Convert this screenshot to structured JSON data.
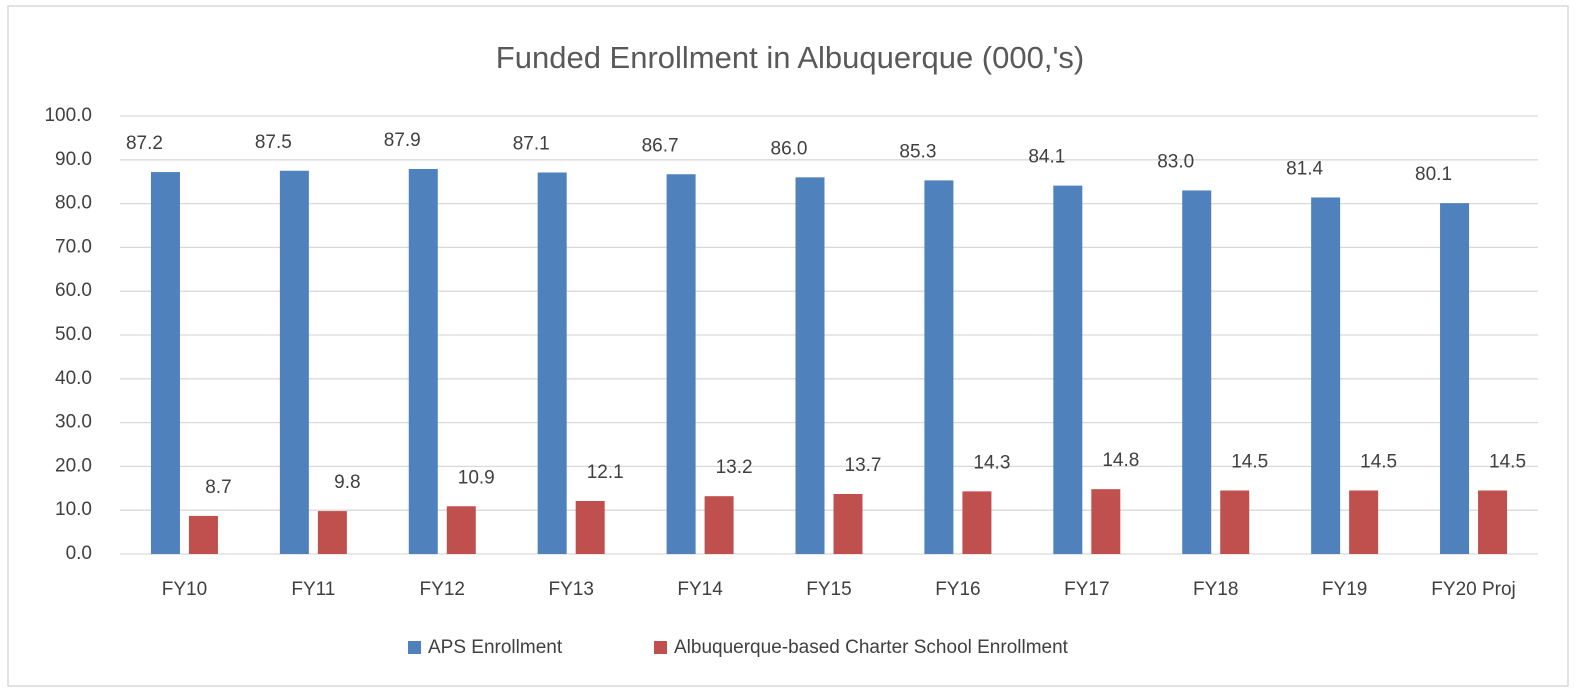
{
  "chart_data": {
    "type": "bar",
    "title": "Funded Enrollment in Albuquerque (000,'s)",
    "categories": [
      "FY10",
      "FY11",
      "FY12",
      "FY13",
      "FY14",
      "FY15",
      "FY16",
      "FY17",
      "FY18",
      "FY19",
      "FY20 Proj"
    ],
    "series": [
      {
        "name": "APS Enrollment",
        "color": "#4f81bd",
        "values": [
          87.2,
          87.5,
          87.9,
          87.1,
          86.7,
          86.0,
          85.3,
          84.1,
          83.0,
          81.4,
          80.1
        ],
        "value_labels": [
          "87.2",
          "87.5",
          "87.9",
          "87.1",
          "86.7",
          "86.0",
          "85.3",
          "84.1",
          "83.0",
          "81.4",
          "80.1"
        ]
      },
      {
        "name": "Albuquerque-based Charter School Enrollment",
        "color": "#c0504d",
        "values": [
          8.7,
          9.8,
          10.9,
          12.1,
          13.2,
          13.7,
          14.3,
          14.8,
          14.5,
          14.5,
          14.5
        ],
        "value_labels": [
          "8.7",
          "9.8",
          "10.9",
          "12.1",
          "13.2",
          "13.7",
          "14.3",
          "14.8",
          "14.5",
          "14.5",
          "14.5"
        ]
      }
    ],
    "ylim": [
      0,
      100
    ],
    "yticks": [
      {
        "value": 0,
        "label": "0.0"
      },
      {
        "value": 10,
        "label": "10.0"
      },
      {
        "value": 20,
        "label": "20.0"
      },
      {
        "value": 30,
        "label": "30.0"
      },
      {
        "value": 40,
        "label": "40.0"
      },
      {
        "value": 50,
        "label": "50.0"
      },
      {
        "value": 60,
        "label": "60.0"
      },
      {
        "value": 70,
        "label": "70.0"
      },
      {
        "value": 80,
        "label": "80.0"
      },
      {
        "value": 90,
        "label": "90.0"
      },
      {
        "value": 100,
        "label": "100.0"
      }
    ],
    "grid": true,
    "legend": "bottom"
  }
}
